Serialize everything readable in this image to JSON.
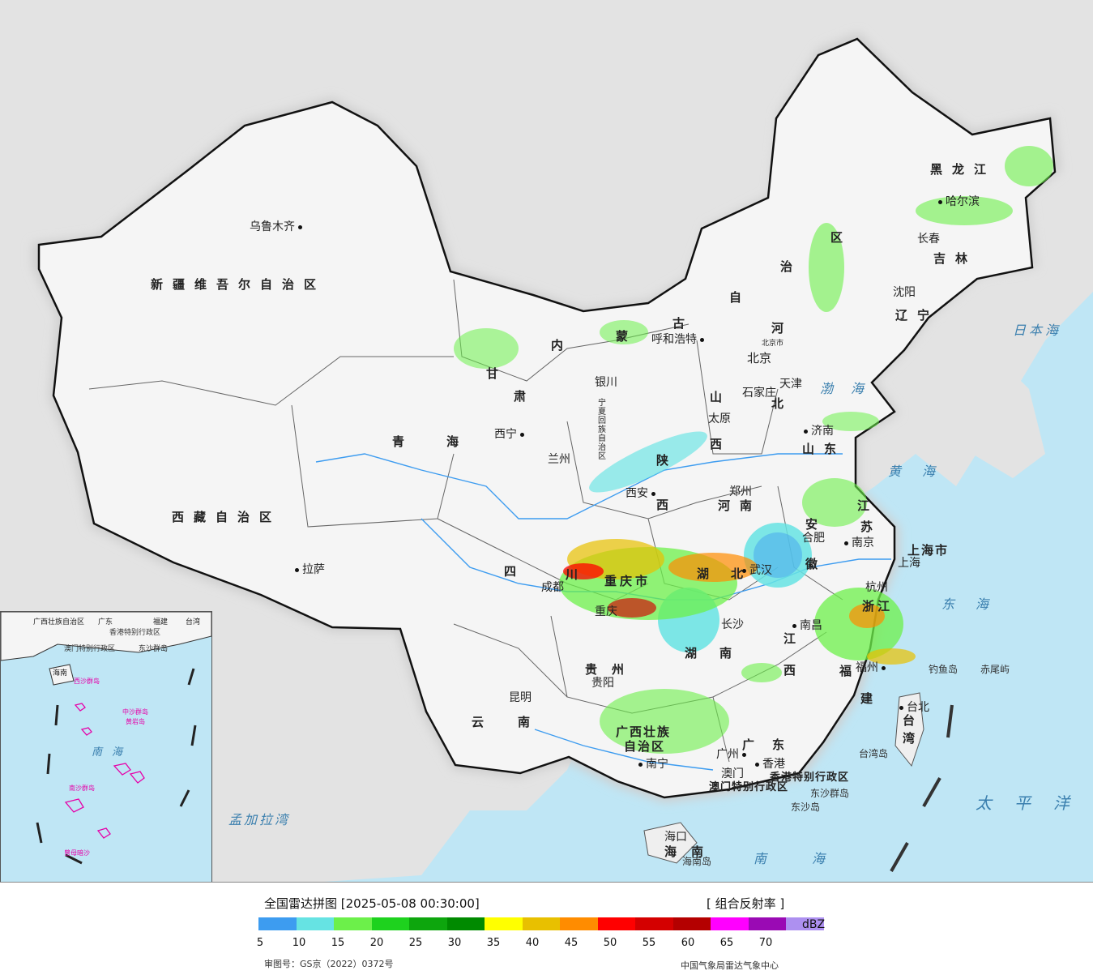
{
  "title": "全国雷达拼图 [2025-05-08 00:30:00]",
  "product": "[ 组合反射率 ]",
  "unit": "dBZ",
  "scale": {
    "ticks": [
      "5",
      "10",
      "15",
      "20",
      "25",
      "30",
      "35",
      "40",
      "45",
      "50",
      "55",
      "60",
      "65",
      "70"
    ],
    "colors": [
      "#3d9cf0",
      "#66e3e3",
      "#6cf04a",
      "#1ed21e",
      "#0da60d",
      "#008a00",
      "#ffff00",
      "#e8c000",
      "#ff8c00",
      "#ff0000",
      "#d40000",
      "#b40000",
      "#ff00ff",
      "#9a0ab4",
      "#ad90f0"
    ]
  },
  "approval": "审图号：GS京（2022）0372号",
  "source": "中国气象局雷达气象中心",
  "provinces": [
    {
      "id": "xinjiang",
      "text": "新疆维吾尔自治区"
    },
    {
      "id": "xizang",
      "text": "西藏自治区"
    },
    {
      "id": "qinghai",
      "text": "青海"
    },
    {
      "id": "gansu",
      "text": "甘"
    },
    {
      "id": "gansu2",
      "text": "肃"
    },
    {
      "id": "neimenggu1",
      "text": "内"
    },
    {
      "id": "neimenggu2",
      "text": "蒙"
    },
    {
      "id": "neimenggu3",
      "text": "古"
    },
    {
      "id": "neimenggu4",
      "text": "自"
    },
    {
      "id": "neimenggu5",
      "text": "治"
    },
    {
      "id": "neimenggu6",
      "text": "区"
    },
    {
      "id": "heilongjiang",
      "text": "黑龙江"
    },
    {
      "id": "jilin",
      "text": "吉林"
    },
    {
      "id": "liaoning",
      "text": "辽宁"
    },
    {
      "id": "hebei",
      "text": "河"
    },
    {
      "id": "hebei2",
      "text": "北"
    },
    {
      "id": "shanxi",
      "text": "山"
    },
    {
      "id": "shanxi2",
      "text": "西"
    },
    {
      "id": "shandong",
      "text": "山东"
    },
    {
      "id": "henan",
      "text": "河南"
    },
    {
      "id": "shaanxi",
      "text": "陕"
    },
    {
      "id": "shaanxi2",
      "text": "西"
    },
    {
      "id": "ningxia",
      "text": "宁夏回族自治区"
    },
    {
      "id": "sichuan",
      "text": "四"
    },
    {
      "id": "sichuan2",
      "text": "川"
    },
    {
      "id": "chongqing",
      "text": "重庆市"
    },
    {
      "id": "hubei",
      "text": "湖"
    },
    {
      "id": "hubei2",
      "text": "北"
    },
    {
      "id": "hunan",
      "text": "湖"
    },
    {
      "id": "hunan2",
      "text": "南"
    },
    {
      "id": "anhui",
      "text": "安"
    },
    {
      "id": "anhui2",
      "text": "徽"
    },
    {
      "id": "jiangsu",
      "text": "江"
    },
    {
      "id": "jiangsu2",
      "text": "苏"
    },
    {
      "id": "shanghai",
      "text": "上海市"
    },
    {
      "id": "zhejiang",
      "text": "浙江"
    },
    {
      "id": "jiangxi",
      "text": "江"
    },
    {
      "id": "jiangxi2",
      "text": "西"
    },
    {
      "id": "fujian",
      "text": "福"
    },
    {
      "id": "fujian2",
      "text": "建"
    },
    {
      "id": "guizhou",
      "text": "贵州"
    },
    {
      "id": "yunnan",
      "text": "云南"
    },
    {
      "id": "guangxi",
      "text": "广西壮族"
    },
    {
      "id": "guangxi2",
      "text": "自治区"
    },
    {
      "id": "guangdong",
      "text": "广东"
    },
    {
      "id": "hainan",
      "text": "海南"
    },
    {
      "id": "taiwan",
      "text": "台湾"
    },
    {
      "id": "hongkong",
      "text": "香港特别行政区"
    },
    {
      "id": "macau",
      "text": "澳门特别行政区"
    }
  ],
  "cities": [
    {
      "id": "urumqi",
      "text": "乌鲁木齐"
    },
    {
      "id": "lhasa",
      "text": "拉萨"
    },
    {
      "id": "xining",
      "text": "西宁"
    },
    {
      "id": "lanzhou",
      "text": "兰州"
    },
    {
      "id": "yinchuan",
      "text": "银川"
    },
    {
      "id": "hohhot",
      "text": "呼和浩特"
    },
    {
      "id": "beijing",
      "text": "北京"
    },
    {
      "id": "beijingshi",
      "text": "北京市"
    },
    {
      "id": "tianjin",
      "text": "天津"
    },
    {
      "id": "shijiazhuang",
      "text": "石家庄"
    },
    {
      "id": "taiyuan",
      "text": "太原"
    },
    {
      "id": "jinan",
      "text": "济南"
    },
    {
      "id": "zhengzhou",
      "text": "郑州"
    },
    {
      "id": "xian",
      "text": "西安"
    },
    {
      "id": "chengdu",
      "text": "成都"
    },
    {
      "id": "chongqingc",
      "text": "重庆"
    },
    {
      "id": "wuhan",
      "text": "武汉"
    },
    {
      "id": "changsha",
      "text": "长沙"
    },
    {
      "id": "hefei",
      "text": "合肥"
    },
    {
      "id": "nanjing",
      "text": "南京"
    },
    {
      "id": "shanghaic",
      "text": "上海"
    },
    {
      "id": "hangzhou",
      "text": "杭州"
    },
    {
      "id": "nanchang",
      "text": "南昌"
    },
    {
      "id": "fuzhou",
      "text": "福州"
    },
    {
      "id": "guiyang",
      "text": "贵阳"
    },
    {
      "id": "kunming",
      "text": "昆明"
    },
    {
      "id": "nanning",
      "text": "南宁"
    },
    {
      "id": "guangzhou",
      "text": "广州"
    },
    {
      "id": "aomen",
      "text": "澳门"
    },
    {
      "id": "xianggang",
      "text": "香港"
    },
    {
      "id": "haikou",
      "text": "海口"
    },
    {
      "id": "taibei",
      "text": "台北"
    },
    {
      "id": "harbin",
      "text": "哈尔滨"
    },
    {
      "id": "changchun",
      "text": "长春"
    },
    {
      "id": "shenyang",
      "text": "沈阳"
    }
  ],
  "seas": [
    {
      "id": "riben",
      "text": "日本海"
    },
    {
      "id": "bohai",
      "text": "渤海"
    },
    {
      "id": "huanghai",
      "text": "黄海"
    },
    {
      "id": "donghai",
      "text": "东海"
    },
    {
      "id": "taipingyang",
      "text": "太平洋"
    },
    {
      "id": "nanhai",
      "text": "南海"
    },
    {
      "id": "mengjiala",
      "text": "孟加拉湾"
    }
  ],
  "islands": [
    {
      "id": "diaoyu",
      "text": "钓鱼岛"
    },
    {
      "id": "chiwei",
      "text": "赤尾屿"
    },
    {
      "id": "taiwandao",
      "text": "台湾岛"
    },
    {
      "id": "dongsha",
      "text": "东沙群岛"
    },
    {
      "id": "dongshadao",
      "text": "东沙岛"
    },
    {
      "id": "hainandao",
      "text": "海南岛"
    }
  ],
  "inset": {
    "nanhai": "南海",
    "dongsha": "东沙群岛",
    "xisha": "西沙群岛",
    "zhongsha": "中沙群岛",
    "nansha": "南沙群岛",
    "zengmu": "曾母暗沙",
    "huangyan": "黄岩岛",
    "hainan": "海南",
    "hk": "香港特别行政区",
    "mo": "澳门特别行政区",
    "taiwan": "台湾",
    "guangxi": "广西壮族自治区",
    "guangdong": "广东",
    "fujian": "福建"
  }
}
